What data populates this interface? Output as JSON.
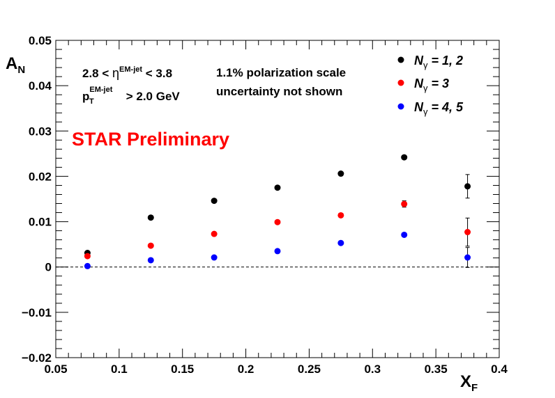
{
  "chart_data": {
    "type": "scatter",
    "xlabel": "X",
    "xlabel_sub": "F",
    "ylabel": "A",
    "ylabel_sub": "N",
    "xlim": [
      0.05,
      0.4
    ],
    "ylim": [
      -0.02,
      0.05
    ],
    "x_ticks": [
      0.05,
      0.1,
      0.15,
      0.2,
      0.25,
      0.3,
      0.35,
      0.4
    ],
    "x_tick_labels": [
      "0.05",
      "0.1",
      "0.15",
      "0.2",
      "0.25",
      "0.3",
      "0.35",
      "0.4"
    ],
    "y_ticks": [
      -0.02,
      -0.01,
      0,
      0.01,
      0.02,
      0.03,
      0.04,
      0.05
    ],
    "y_tick_labels": [
      "−0.02",
      "−0.01",
      "0",
      "0.01",
      "0.02",
      "0.03",
      "0.04",
      "0.05"
    ],
    "grid": false,
    "zero_line": "dashed",
    "legend_position": "top-right",
    "x": [
      0.075,
      0.125,
      0.175,
      0.225,
      0.275,
      0.325,
      0.375
    ],
    "series": [
      {
        "name": "Nγ = 1, 2",
        "label_main": "N",
        "label_sub": "γ",
        "label_rest": " = 1, 2",
        "color": "#000000",
        "values": [
          0.0031,
          0.0109,
          0.0146,
          0.0175,
          0.0206,
          0.0242,
          0.0178
        ],
        "errors": [
          0.0003,
          0.0003,
          0.0003,
          0.0004,
          0.0004,
          0.0006,
          0.0026
        ]
      },
      {
        "name": "Nγ = 3",
        "label_main": "N",
        "label_sub": "γ",
        "label_rest": " = 3",
        "color": "#ff0000",
        "values": [
          0.0024,
          0.0047,
          0.0073,
          0.0099,
          0.0114,
          0.0139,
          0.0077
        ],
        "errors": [
          0.0002,
          0.0002,
          0.0002,
          0.0003,
          0.0003,
          0.0007,
          0.0031
        ]
      },
      {
        "name": "Nγ = 4, 5",
        "label_main": "N",
        "label_sub": "γ",
        "label_rest": " = 4, 5",
        "color": "#0000ff",
        "values": [
          0.0002,
          0.0015,
          0.0021,
          0.0035,
          0.0053,
          0.0071,
          0.0021
        ],
        "errors": [
          0.0002,
          0.0002,
          0.0002,
          0.0002,
          0.0003,
          0.0004,
          0.0022
        ]
      }
    ]
  },
  "annotations": {
    "eta_low": "2.8 < ",
    "eta_symbol": "η",
    "eta_sup": "EM-jet",
    "eta_high": " < 3.8",
    "pt_main": "p",
    "pt_sub": "T",
    "pt_sup": "EM-jet",
    "pt_rest": " > 2.0 GeV",
    "pol_line1": "1.1% polarization scale",
    "pol_line2": "uncertainty not shown",
    "preliminary": "STAR Preliminary"
  },
  "colors": {
    "frame": "#000000",
    "preliminary": "#ff0000"
  }
}
